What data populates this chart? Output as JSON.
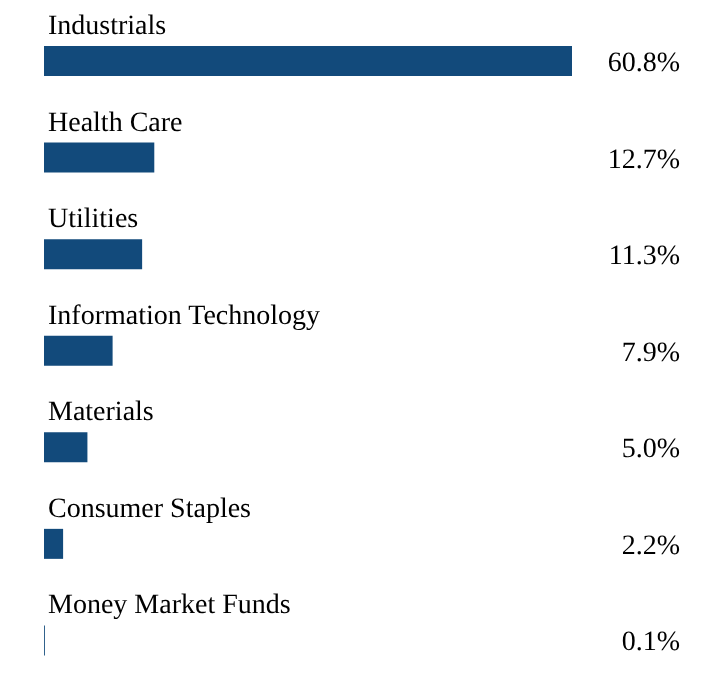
{
  "chart_data": {
    "type": "bar",
    "orientation": "horizontal",
    "categories": [
      "Industrials",
      "Health Care",
      "Utilities",
      "Information Technology",
      "Materials",
      "Consumer Staples",
      "Money Market Funds"
    ],
    "values": [
      60.8,
      12.7,
      11.3,
      7.9,
      5.0,
      2.2,
      0.1
    ],
    "value_labels": [
      "60.8%",
      "12.7%",
      "11.3%",
      "7.9%",
      "5.0%",
      "2.2%",
      "0.1%"
    ],
    "color": "#124a7b",
    "xlim": [
      0,
      60.8
    ],
    "grid": false,
    "legend": false
  }
}
